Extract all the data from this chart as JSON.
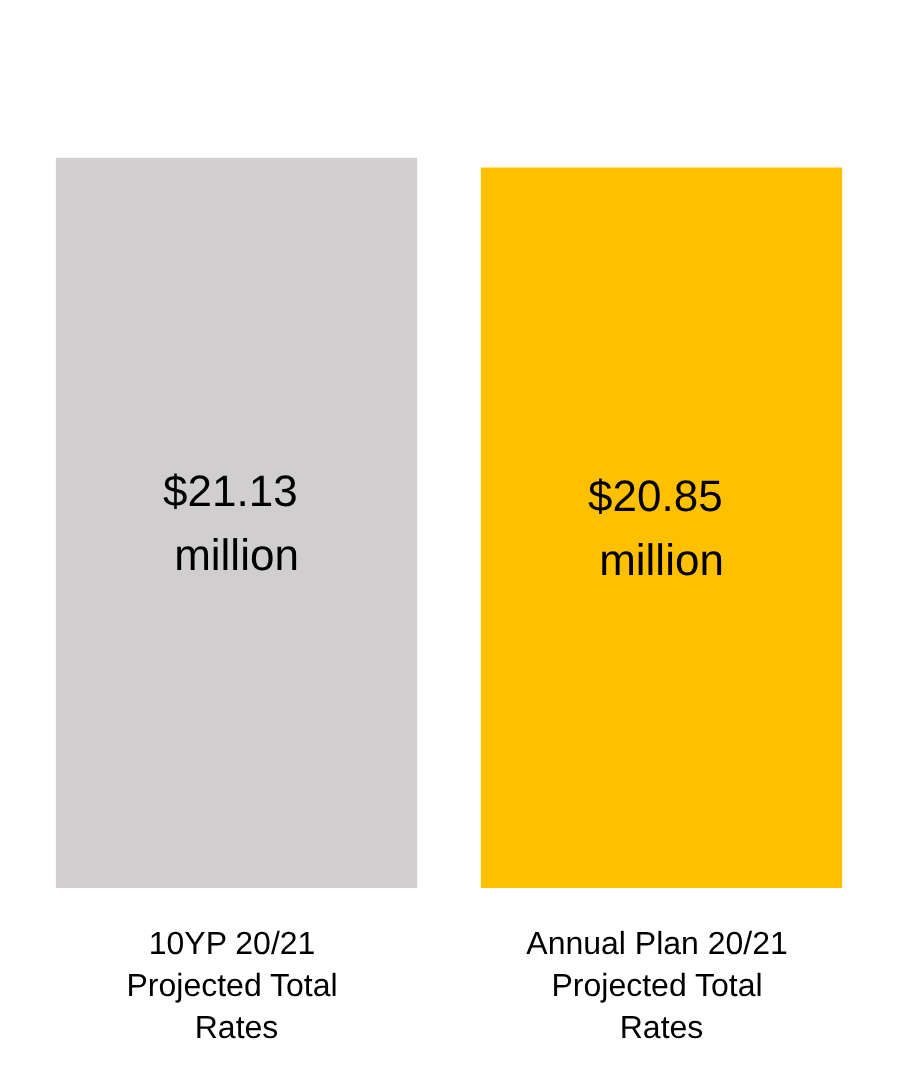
{
  "chart_data": {
    "type": "bar",
    "categories": [
      "10YP 20/21 Projected Total Rates",
      "Annual Plan 20/21 Projected Total Rates"
    ],
    "values": [
      21.13,
      20.85
    ],
    "colors": [
      "#d0cece",
      "#ffc000"
    ],
    "value_labels": [
      "$21.13 million",
      "$20.85 million"
    ]
  }
}
